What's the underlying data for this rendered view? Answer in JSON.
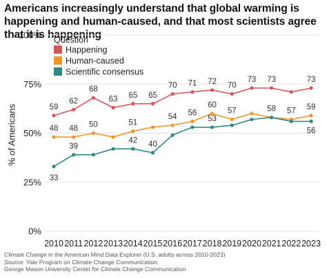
{
  "chart_data": {
    "type": "line",
    "title": "Americans increasingly understand that global warming is happening and human-caused, and that most scientists agree that it is happening",
    "ylabel": "% of Americans",
    "xlabel": "",
    "ylim": [
      0,
      100
    ],
    "yticks": [
      "0%",
      "25%",
      "50%",
      "75%",
      "100%"
    ],
    "ytick_values": [
      0,
      25,
      50,
      75,
      100
    ],
    "grid": true,
    "legend_title": "Question",
    "legend_position": "top-left",
    "x": [
      "2010",
      "2011",
      "2012",
      "2013",
      "2014",
      "2015",
      "2016",
      "2017",
      "2018",
      "2019",
      "2020",
      "2021",
      "2022",
      "2023"
    ],
    "series": [
      {
        "name": "Happening",
        "color": "#d9545a",
        "values": [
          59,
          62,
          68,
          63,
          65,
          65,
          70,
          71,
          72,
          70,
          73,
          73,
          71,
          73
        ]
      },
      {
        "name": "Human-caused",
        "color": "#f0952e",
        "values": [
          48,
          48,
          50,
          48,
          51,
          53,
          54,
          56,
          60,
          57,
          60,
          58,
          57,
          59
        ]
      },
      {
        "name": "Scientific consensus",
        "color": "#2f8b82",
        "values": [
          33,
          39,
          39,
          42,
          42,
          40,
          49,
          53,
          53,
          54,
          57,
          58,
          56,
          56
        ]
      }
    ],
    "data_labels": {
      "Happening": [
        "59",
        "62",
        "68",
        "63",
        "65",
        "65",
        "70",
        "71",
        "72",
        "70",
        "73",
        "73",
        "",
        "73"
      ],
      "Human-caused": [
        "48",
        "48",
        "50",
        "",
        "51",
        "",
        "54",
        "56",
        "60",
        "57",
        "",
        "",
        "57",
        "59"
      ],
      "Scientific consensus": [
        "33",
        "39",
        "",
        "",
        "42",
        "40",
        "",
        "",
        "53",
        "",
        "",
        "58",
        "",
        "56"
      ]
    }
  },
  "caption": {
    "line1": "Climate Change in the American Mind Data Explorer (U.S. adults across 2010-2023)",
    "source_label": "Source:",
    "source_text": " Yale Program on Climate Change Communication;",
    "line3": "George Mason University Center for Climate Change Communication"
  }
}
